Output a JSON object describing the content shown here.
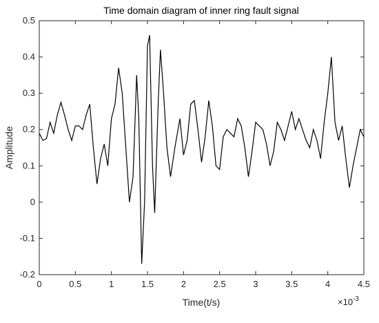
{
  "chart_data": {
    "type": "line",
    "title": "Time domain diagram of inner ring fault signal",
    "xlabel": "Time(t/s)",
    "ylabel": "Amplitude",
    "x_scale_label": {
      "base": "×10",
      "exponent": "-3"
    },
    "xlim": [
      0,
      4.5
    ],
    "xticks": [
      0,
      0.5,
      1,
      1.5,
      2,
      2.5,
      3,
      3.5,
      4,
      4.5
    ],
    "ylim": [
      -0.2,
      0.5
    ],
    "yticks": [
      -0.2,
      -0.1,
      0,
      0.1,
      0.2,
      0.3,
      0.4,
      0.5
    ],
    "grid": false,
    "series": [
      {
        "color": "#000000",
        "x": [
          0,
          0.05,
          0.1,
          0.15,
          0.2,
          0.25,
          0.3,
          0.35,
          0.4,
          0.45,
          0.5,
          0.55,
          0.6,
          0.65,
          0.7,
          0.75,
          0.8,
          0.85,
          0.9,
          0.95,
          1.0,
          1.05,
          1.1,
          1.15,
          1.2,
          1.25,
          1.3,
          1.35,
          1.38,
          1.42,
          1.46,
          1.5,
          1.53,
          1.57,
          1.6,
          1.65,
          1.68,
          1.72,
          1.77,
          1.82,
          1.88,
          1.95,
          2.0,
          2.05,
          2.1,
          2.15,
          2.2,
          2.25,
          2.3,
          2.35,
          2.4,
          2.45,
          2.5,
          2.55,
          2.6,
          2.7,
          2.75,
          2.8,
          2.85,
          2.9,
          2.95,
          3.0,
          3.05,
          3.1,
          3.15,
          3.2,
          3.25,
          3.3,
          3.35,
          3.4,
          3.45,
          3.5,
          3.55,
          3.6,
          3.65,
          3.7,
          3.75,
          3.8,
          3.85,
          3.9,
          3.95,
          4.0,
          4.05,
          4.1,
          4.15,
          4.2,
          4.25,
          4.3,
          4.35,
          4.4,
          4.45,
          4.5
        ],
        "values": [
          0.19,
          0.17,
          0.175,
          0.22,
          0.19,
          0.24,
          0.275,
          0.24,
          0.2,
          0.17,
          0.21,
          0.21,
          0.2,
          0.24,
          0.27,
          0.15,
          0.05,
          0.12,
          0.16,
          0.1,
          0.23,
          0.27,
          0.37,
          0.3,
          0.15,
          0.0,
          0.07,
          0.35,
          0.23,
          -0.17,
          0.0,
          0.43,
          0.46,
          0.1,
          -0.03,
          0.28,
          0.42,
          0.31,
          0.15,
          0.07,
          0.15,
          0.23,
          0.13,
          0.17,
          0.27,
          0.28,
          0.2,
          0.11,
          0.18,
          0.28,
          0.21,
          0.1,
          0.09,
          0.18,
          0.2,
          0.18,
          0.23,
          0.21,
          0.15,
          0.07,
          0.14,
          0.22,
          0.21,
          0.2,
          0.16,
          0.1,
          0.14,
          0.22,
          0.2,
          0.17,
          0.21,
          0.25,
          0.2,
          0.23,
          0.2,
          0.17,
          0.15,
          0.2,
          0.17,
          0.12,
          0.22,
          0.3,
          0.4,
          0.22,
          0.17,
          0.21,
          0.12,
          0.04,
          0.1,
          0.15,
          0.2,
          0.18
        ]
      }
    ]
  }
}
